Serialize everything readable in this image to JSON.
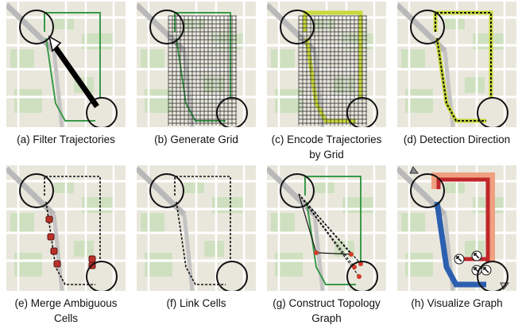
{
  "panels": [
    {
      "caption": [
        "(a) Filter Trajectories"
      ]
    },
    {
      "caption": [
        "(b) Generate Grid"
      ]
    },
    {
      "caption": [
        "(c) Encode Trajectories",
        "by Grid"
      ]
    },
    {
      "caption": [
        "(d) Detection Direction"
      ]
    },
    {
      "caption": [
        "(e) Merge Ambiguous",
        "Cells"
      ]
    },
    {
      "caption": [
        "(f) Link Cells"
      ]
    },
    {
      "caption": [
        "(g) Construct Topology",
        "Graph"
      ]
    },
    {
      "caption": [
        "(h) Visualize Graph"
      ]
    }
  ]
}
